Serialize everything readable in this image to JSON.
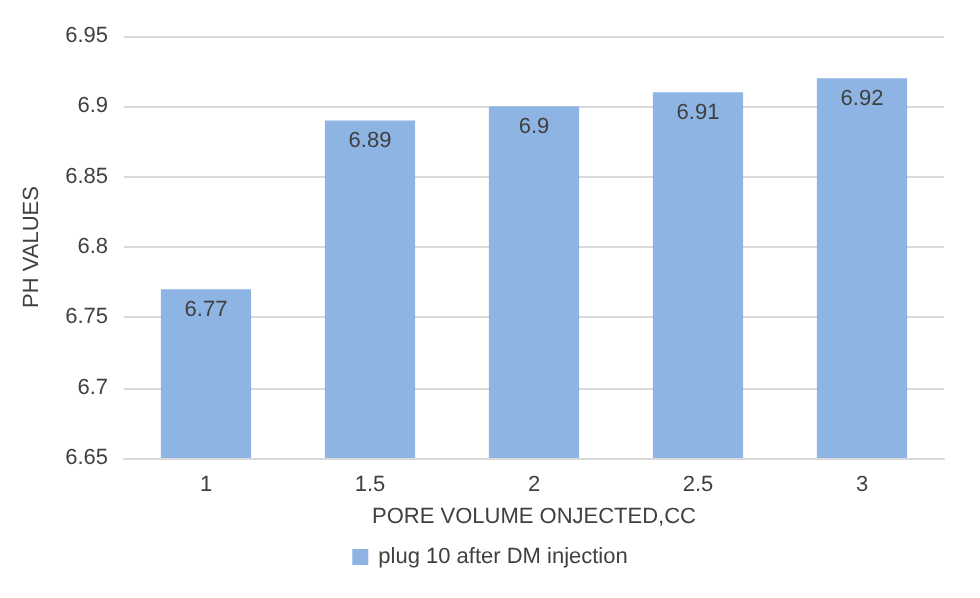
{
  "chart_data": {
    "type": "bar",
    "xlabel": "PORE VOLUME ONJECTED,CC",
    "ylabel": "PH VALUES",
    "categories": [
      "1",
      "1.5",
      "2",
      "2.5",
      "3"
    ],
    "series": [
      {
        "name": "plug 10 after DM injection",
        "color": "#8db4e2",
        "values": [
          6.77,
          6.89,
          6.9,
          6.91,
          6.92
        ]
      }
    ],
    "ylim": [
      6.65,
      6.95
    ],
    "yticks": [
      6.65,
      6.7,
      6.75,
      6.8,
      6.85,
      6.9,
      6.95
    ],
    "grid": "y",
    "legend": "bottom",
    "data_labels": true
  }
}
